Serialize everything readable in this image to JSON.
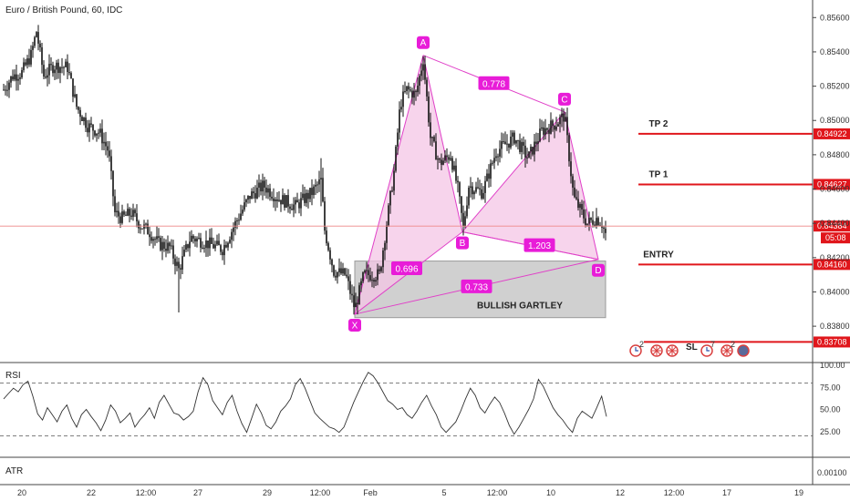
{
  "header": {
    "title": "Euro / British Pound, 60, IDC"
  },
  "colors": {
    "pattern_fill": "#f4c6e6",
    "pattern_stroke": "#e040c8",
    "point_box": "#e81cd8",
    "level_red": "#e0161b",
    "zone_fill": "#d0d0d0",
    "candle": "#111111",
    "grid_dash": "#555555"
  },
  "chart_data": {
    "type": "candlestick",
    "symbol": "EUR/GBP",
    "timeframe": "60",
    "ylim": [
      0.8362,
      0.8566
    ],
    "y_ticks": [
      "0.85600",
      "0.85400",
      "0.85200",
      "0.85000",
      "0.84800",
      "0.84600",
      "0.84400",
      "0.84200",
      "0.84000",
      "0.83800"
    ],
    "x_ticks": [
      "20",
      "22",
      "12:00",
      "27",
      "29",
      "12:00",
      "Feb",
      "5",
      "12:00",
      "10",
      "12",
      "12:00",
      "17",
      "19"
    ],
    "current_price": {
      "value": "0.84384",
      "countdown": "05:08"
    },
    "price_path": [
      [
        0,
        0.8518
      ],
      [
        10,
        0.8526
      ],
      [
        20,
        0.8528
      ],
      [
        30,
        0.8538
      ],
      [
        36,
        0.8552
      ],
      [
        44,
        0.8526
      ],
      [
        55,
        0.8532
      ],
      [
        70,
        0.8531
      ],
      [
        80,
        0.8508
      ],
      [
        92,
        0.8497
      ],
      [
        105,
        0.8493
      ],
      [
        115,
        0.8482
      ],
      [
        122,
        0.8446
      ],
      [
        130,
        0.8443
      ],
      [
        140,
        0.8446
      ],
      [
        150,
        0.8439
      ],
      [
        160,
        0.8435
      ],
      [
        170,
        0.8428
      ],
      [
        182,
        0.8426
      ],
      [
        192,
        0.8413
      ],
      [
        205,
        0.8432
      ],
      [
        220,
        0.8429
      ],
      [
        240,
        0.8425
      ],
      [
        255,
        0.8441
      ],
      [
        270,
        0.8456
      ],
      [
        285,
        0.8462
      ],
      [
        300,
        0.8455
      ],
      [
        320,
        0.845
      ],
      [
        338,
        0.8458
      ],
      [
        348,
        0.8465
      ],
      [
        352,
        0.8436
      ],
      [
        362,
        0.8412
      ],
      [
        375,
        0.841
      ],
      [
        385,
        0.839
      ],
      [
        395,
        0.841
      ],
      [
        412,
        0.841
      ],
      [
        420,
        0.844
      ],
      [
        428,
        0.847
      ],
      [
        435,
        0.851
      ],
      [
        442,
        0.8518
      ],
      [
        452,
        0.8515
      ],
      [
        460,
        0.8536
      ],
      [
        468,
        0.849
      ],
      [
        478,
        0.8475
      ],
      [
        490,
        0.848
      ],
      [
        498,
        0.846
      ],
      [
        504,
        0.8437
      ],
      [
        510,
        0.8462
      ],
      [
        525,
        0.8458
      ],
      [
        540,
        0.8482
      ],
      [
        560,
        0.849
      ],
      [
        575,
        0.8478
      ],
      [
        590,
        0.8494
      ],
      [
        605,
        0.8498
      ],
      [
        615,
        0.8503
      ],
      [
        625,
        0.8455
      ],
      [
        640,
        0.844
      ],
      [
        650,
        0.8443
      ],
      [
        656,
        0.844
      ],
      [
        661,
        0.8432
      ]
    ],
    "pattern": {
      "name": "BULLISH GARTLEY",
      "points": [
        {
          "label": "X",
          "i": 385,
          "price": 0.8387
        },
        {
          "label": "A",
          "i": 460,
          "price": 0.8538
        },
        {
          "label": "B",
          "i": 503,
          "price": 0.8435
        },
        {
          "label": "C",
          "i": 615,
          "price": 0.8505
        },
        {
          "label": "D",
          "i": 652,
          "price": 0.8419
        }
      ],
      "ratios": [
        {
          "text": "0.778",
          "between": "A-C"
        },
        {
          "text": "0.696",
          "between": "X-B"
        },
        {
          "text": "1.203",
          "between": "B-D"
        },
        {
          "text": "0.733",
          "between": "X-D"
        }
      ],
      "zone": {
        "price_top": 0.8418,
        "price_bottom": 0.8385,
        "label": "BULLISH GARTLEY"
      }
    },
    "levels": [
      {
        "label": "TP 2",
        "value": 0.84922,
        "text": "0.84922"
      },
      {
        "label": "TP 1",
        "value": 0.84627,
        "text": "0.84627"
      },
      {
        "label": "ENTRY",
        "value": 0.8416,
        "text": "0.84160"
      },
      {
        "label": "SL",
        "value": 0.83708,
        "text": "0.83708"
      }
    ],
    "rsi": {
      "label": "RSI",
      "ylim": [
        0,
        100
      ],
      "ticks": [
        "100.00",
        "75.00",
        "50.00",
        "25.00"
      ],
      "levels": [
        80,
        20
      ],
      "values": [
        62,
        68,
        74,
        70,
        78,
        82,
        65,
        45,
        38,
        52,
        44,
        36,
        48,
        55,
        40,
        30,
        44,
        50,
        42,
        35,
        26,
        38,
        55,
        48,
        35,
        40,
        46,
        30,
        38,
        44,
        52,
        40,
        58,
        66,
        56,
        46,
        44,
        38,
        42,
        48,
        70,
        86,
        78,
        60,
        52,
        44,
        58,
        66,
        48,
        34,
        24,
        40,
        56,
        46,
        32,
        28,
        36,
        48,
        54,
        62,
        78,
        85,
        74,
        60,
        46,
        40,
        35,
        30,
        28,
        24,
        30,
        44,
        58,
        70,
        82,
        92,
        88,
        80,
        70,
        60,
        56,
        50,
        52,
        44,
        40,
        48,
        58,
        66,
        54,
        44,
        30,
        24,
        30,
        36,
        48,
        62,
        74,
        66,
        52,
        46,
        56,
        64,
        58,
        46,
        32,
        22,
        30,
        40,
        50,
        62,
        84,
        76,
        64,
        52,
        44,
        38,
        30,
        24,
        40,
        48,
        44,
        40,
        52,
        65,
        42
      ]
    },
    "atr": {
      "label": "ATR",
      "tick": "0.00100"
    },
    "event_icons": {
      "sl_text": "SL",
      "badge_1": "2",
      "badge_2": "7",
      "badge_3": "2"
    }
  }
}
